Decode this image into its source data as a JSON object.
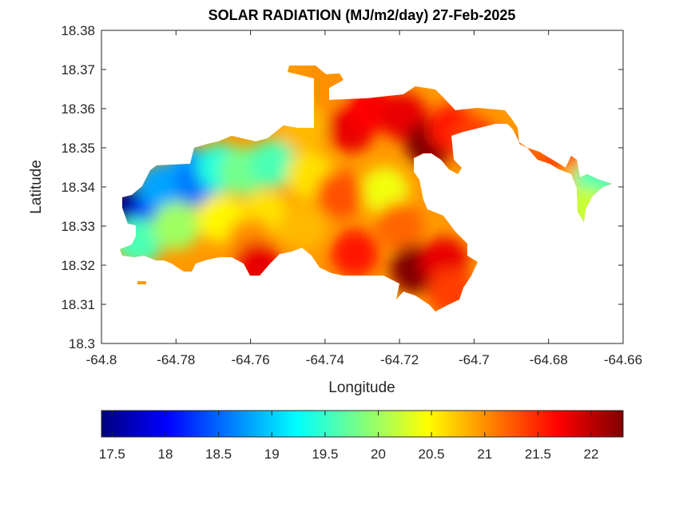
{
  "chart_data": {
    "type": "heatmap",
    "title": "SOLAR RADIATION (MJ/m2/day) 27-Feb-2025",
    "xlabel": "Longitude",
    "ylabel": "Latitude",
    "xlim": [
      -64.8,
      -64.66
    ],
    "ylim": [
      18.3,
      18.38
    ],
    "x_ticks": [
      -64.8,
      -64.78,
      -64.76,
      -64.74,
      -64.72,
      -64.7,
      -64.68,
      -64.66
    ],
    "x_tick_labels": [
      "-64.8",
      "-64.78",
      "-64.76",
      "-64.74",
      "-64.72",
      "-64.7",
      "-64.68",
      "-64.66"
    ],
    "y_ticks": [
      18.3,
      18.31,
      18.32,
      18.33,
      18.34,
      18.35,
      18.36,
      18.37,
      18.38
    ],
    "y_tick_labels": [
      "18.3",
      "18.31",
      "18.32",
      "18.33",
      "18.34",
      "18.35",
      "18.36",
      "18.37",
      "18.38"
    ],
    "colormap": "jet",
    "color_range": [
      17.4,
      22.3
    ],
    "colorbar": {
      "orientation": "horizontal",
      "placement": "bottom",
      "ticks": [
        17.5,
        18,
        18.5,
        19,
        19.5,
        20,
        20.5,
        21,
        21.5,
        22
      ],
      "tick_labels": [
        "17.5",
        "18",
        "18.5",
        "19",
        "19.5",
        "20",
        "20.5",
        "21",
        "21.5",
        "22"
      ]
    },
    "grid": false,
    "field_samples": [
      {
        "lon": -64.792,
        "lat": 18.334,
        "value": 17.4
      },
      {
        "lon": -64.786,
        "lat": 18.332,
        "value": 18.0
      },
      {
        "lon": -64.784,
        "lat": 18.34,
        "value": 18.8
      },
      {
        "lon": -64.776,
        "lat": 18.344,
        "value": 18.8
      },
      {
        "lon": -64.774,
        "lat": 18.341,
        "value": 18.6
      },
      {
        "lon": -64.768,
        "lat": 18.345,
        "value": 19.4
      },
      {
        "lon": -64.762,
        "lat": 18.344,
        "value": 19.8
      },
      {
        "lon": -64.754,
        "lat": 18.346,
        "value": 19.6
      },
      {
        "lon": -64.79,
        "lat": 18.326,
        "value": 19.6
      },
      {
        "lon": -64.78,
        "lat": 18.33,
        "value": 20.0
      },
      {
        "lon": -64.768,
        "lat": 18.332,
        "value": 20.5
      },
      {
        "lon": -64.756,
        "lat": 18.333,
        "value": 20.6
      },
      {
        "lon": -64.76,
        "lat": 18.326,
        "value": 21.0
      },
      {
        "lon": -64.746,
        "lat": 18.33,
        "value": 20.8
      },
      {
        "lon": -64.744,
        "lat": 18.343,
        "value": 20.6
      },
      {
        "lon": -64.746,
        "lat": 18.355,
        "value": 20.8
      },
      {
        "lon": -64.741,
        "lat": 18.366,
        "value": 21.0
      },
      {
        "lon": -64.733,
        "lat": 18.355,
        "value": 21.8
      },
      {
        "lon": -64.728,
        "lat": 18.36,
        "value": 21.7
      },
      {
        "lon": -64.719,
        "lat": 18.358,
        "value": 21.8
      },
      {
        "lon": -64.712,
        "lat": 18.351,
        "value": 22.3
      },
      {
        "lon": -64.706,
        "lat": 18.355,
        "value": 21.6
      },
      {
        "lon": -64.724,
        "lat": 18.339,
        "value": 20.4
      },
      {
        "lon": -64.736,
        "lat": 18.338,
        "value": 21.3
      },
      {
        "lon": -64.72,
        "lat": 18.33,
        "value": 21.2
      },
      {
        "lon": -64.716,
        "lat": 18.319,
        "value": 22.3
      },
      {
        "lon": -64.708,
        "lat": 18.321,
        "value": 21.8
      },
      {
        "lon": -64.732,
        "lat": 18.323,
        "value": 21.6
      },
      {
        "lon": -64.758,
        "lat": 18.32,
        "value": 21.8
      },
      {
        "lon": -64.706,
        "lat": 18.313,
        "value": 21.4
      },
      {
        "lon": -64.7,
        "lat": 18.352,
        "value": 21.4
      },
      {
        "lon": -64.686,
        "lat": 18.347,
        "value": 21.2
      },
      {
        "lon": -64.676,
        "lat": 18.344,
        "value": 21.4
      },
      {
        "lon": -64.672,
        "lat": 18.34,
        "value": 20.8
      },
      {
        "lon": -64.667,
        "lat": 18.341,
        "value": 19.6
      },
      {
        "lon": -64.67,
        "lat": 18.334,
        "value": 20.2
      }
    ]
  }
}
